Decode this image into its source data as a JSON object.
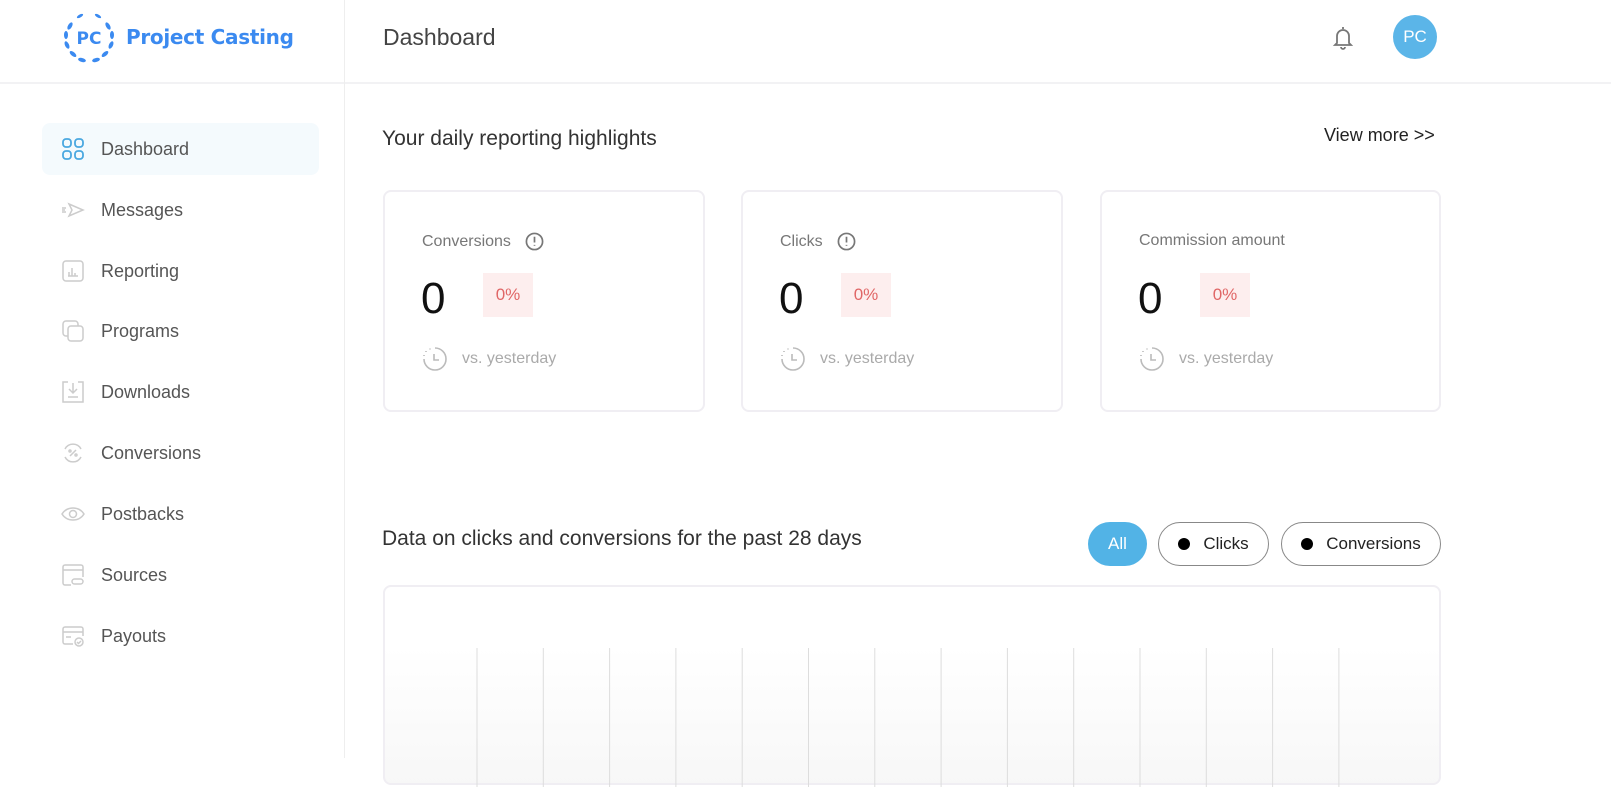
{
  "brand": {
    "logo_initials": "PC",
    "name": "Project Casting",
    "color": "#3b8af0"
  },
  "header": {
    "title": "Dashboard",
    "notification_icon": "bell-icon",
    "avatar_initials": "PC",
    "avatar_color": "#5bb5e8"
  },
  "sidebar": {
    "items": [
      {
        "label": "Dashboard",
        "icon": "grid-icon",
        "active": true
      },
      {
        "label": "Messages",
        "icon": "send-icon"
      },
      {
        "label": "Reporting",
        "icon": "report-icon"
      },
      {
        "label": "Programs",
        "icon": "copy-icon"
      },
      {
        "label": "Downloads",
        "icon": "download-icon"
      },
      {
        "label": "Conversions",
        "icon": "percent-cycle-icon"
      },
      {
        "label": "Postbacks",
        "icon": "eye-icon"
      },
      {
        "label": "Sources",
        "icon": "browser-link-icon"
      },
      {
        "label": "Payouts",
        "icon": "card-check-icon"
      }
    ]
  },
  "highlights": {
    "title": "Your daily reporting highlights",
    "view_more": "View more >>",
    "cards": [
      {
        "label": "Conversions",
        "value": "0",
        "change": "0%",
        "compare": "vs. yesterday",
        "info": true
      },
      {
        "label": "Clicks",
        "value": "0",
        "change": "0%",
        "compare": "vs. yesterday",
        "info": true
      },
      {
        "label": "Commission amount",
        "value": "0",
        "change": "0%",
        "compare": "vs. yesterday",
        "info": false
      }
    ]
  },
  "chart_section": {
    "title": "Data on clicks and conversions for the past 28 days",
    "filters": [
      {
        "label": "All",
        "active": true
      },
      {
        "label": "Clicks"
      },
      {
        "label": "Conversions"
      }
    ]
  },
  "chart_data": {
    "type": "line",
    "title": "",
    "grid": "vertical",
    "series": [
      {
        "name": "Clicks",
        "values": []
      },
      {
        "name": "Conversions",
        "values": []
      }
    ],
    "gridline_count": 14
  }
}
